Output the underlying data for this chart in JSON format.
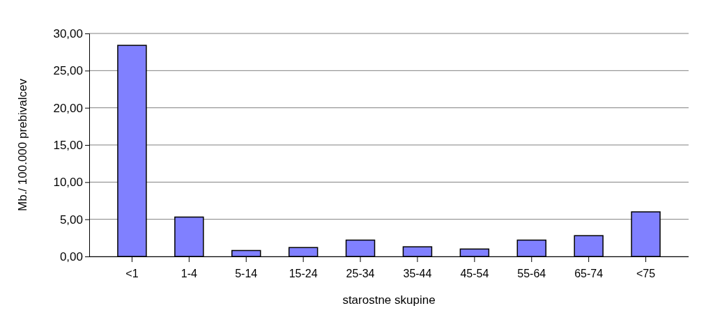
{
  "chart_data": {
    "type": "bar",
    "xlabel": "starostne skupine",
    "ylabel": "Mb./ 100.000 prebivalcev",
    "categories": [
      "<1",
      "1-4",
      "5-14",
      "15-24",
      "25-34",
      "35-44",
      "45-54",
      "55-64",
      "65-74",
      "<75"
    ],
    "values": [
      28.4,
      5.3,
      0.8,
      1.2,
      2.2,
      1.3,
      1.0,
      2.2,
      2.8,
      6.0
    ],
    "color": "#8080ff",
    "ylim": [
      0,
      30
    ],
    "yticks": [
      {
        "value": 0,
        "label": "0,00"
      },
      {
        "value": 5,
        "label": "5,00"
      },
      {
        "value": 10,
        "label": "10,00"
      },
      {
        "value": 15,
        "label": "15,00"
      },
      {
        "value": 20,
        "label": "20,00"
      },
      {
        "value": 25,
        "label": "25,00"
      },
      {
        "value": 30,
        "label": "30,00"
      }
    ],
    "grid": "y"
  }
}
